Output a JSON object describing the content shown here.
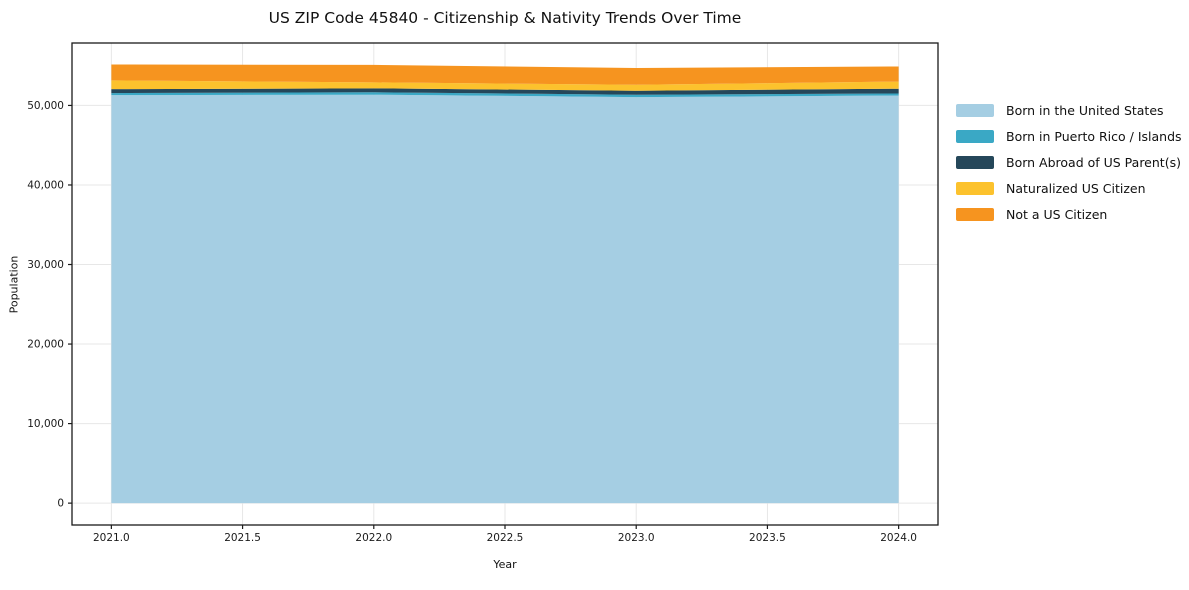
{
  "chart_data": {
    "type": "area",
    "stacked": true,
    "title": "US ZIP Code 45840 - Citizenship & Nativity Trends Over Time",
    "xlabel": "Year",
    "ylabel": "Population",
    "x": [
      2021,
      2022,
      2023,
      2024
    ],
    "series": [
      {
        "name": "Born in the United States",
        "color": "#a5cee3",
        "values": [
          51300,
          51350,
          51050,
          51250
        ]
      },
      {
        "name": "Born in Puerto Rico / Islands",
        "color": "#3aa8c5",
        "values": [
          250,
          300,
          300,
          250
        ]
      },
      {
        "name": "Born Abroad of US Parent(s)",
        "color": "#25475a",
        "values": [
          500,
          500,
          500,
          600
        ]
      },
      {
        "name": "Naturalized US Citizen",
        "color": "#fcc22d",
        "values": [
          1100,
          750,
          750,
          900
        ]
      },
      {
        "name": "Not a US Citizen",
        "color": "#f6941f",
        "values": [
          2000,
          2200,
          2100,
          1900
        ]
      }
    ],
    "xlim": [
      2020.85,
      2024.15
    ],
    "ylim": [
      -2750,
      57850
    ],
    "x_ticks": [
      2021.0,
      2021.5,
      2022.0,
      2022.5,
      2023.0,
      2023.5,
      2024.0
    ],
    "x_tick_labels": [
      "2021.0",
      "2021.5",
      "2022.0",
      "2022.5",
      "2023.0",
      "2023.5",
      "2024.0"
    ],
    "y_ticks": [
      0,
      10000,
      20000,
      30000,
      40000,
      50000
    ],
    "y_tick_labels": [
      "0",
      "10,000",
      "20,000",
      "30,000",
      "40,000",
      "50,000"
    ],
    "grid": true,
    "legend_position": "right of plot",
    "colors": {
      "grid": "#e7e7e7",
      "spine": "#1a1a1a",
      "plot_background": "#ffffff",
      "figure_background": "#ffffff"
    }
  }
}
